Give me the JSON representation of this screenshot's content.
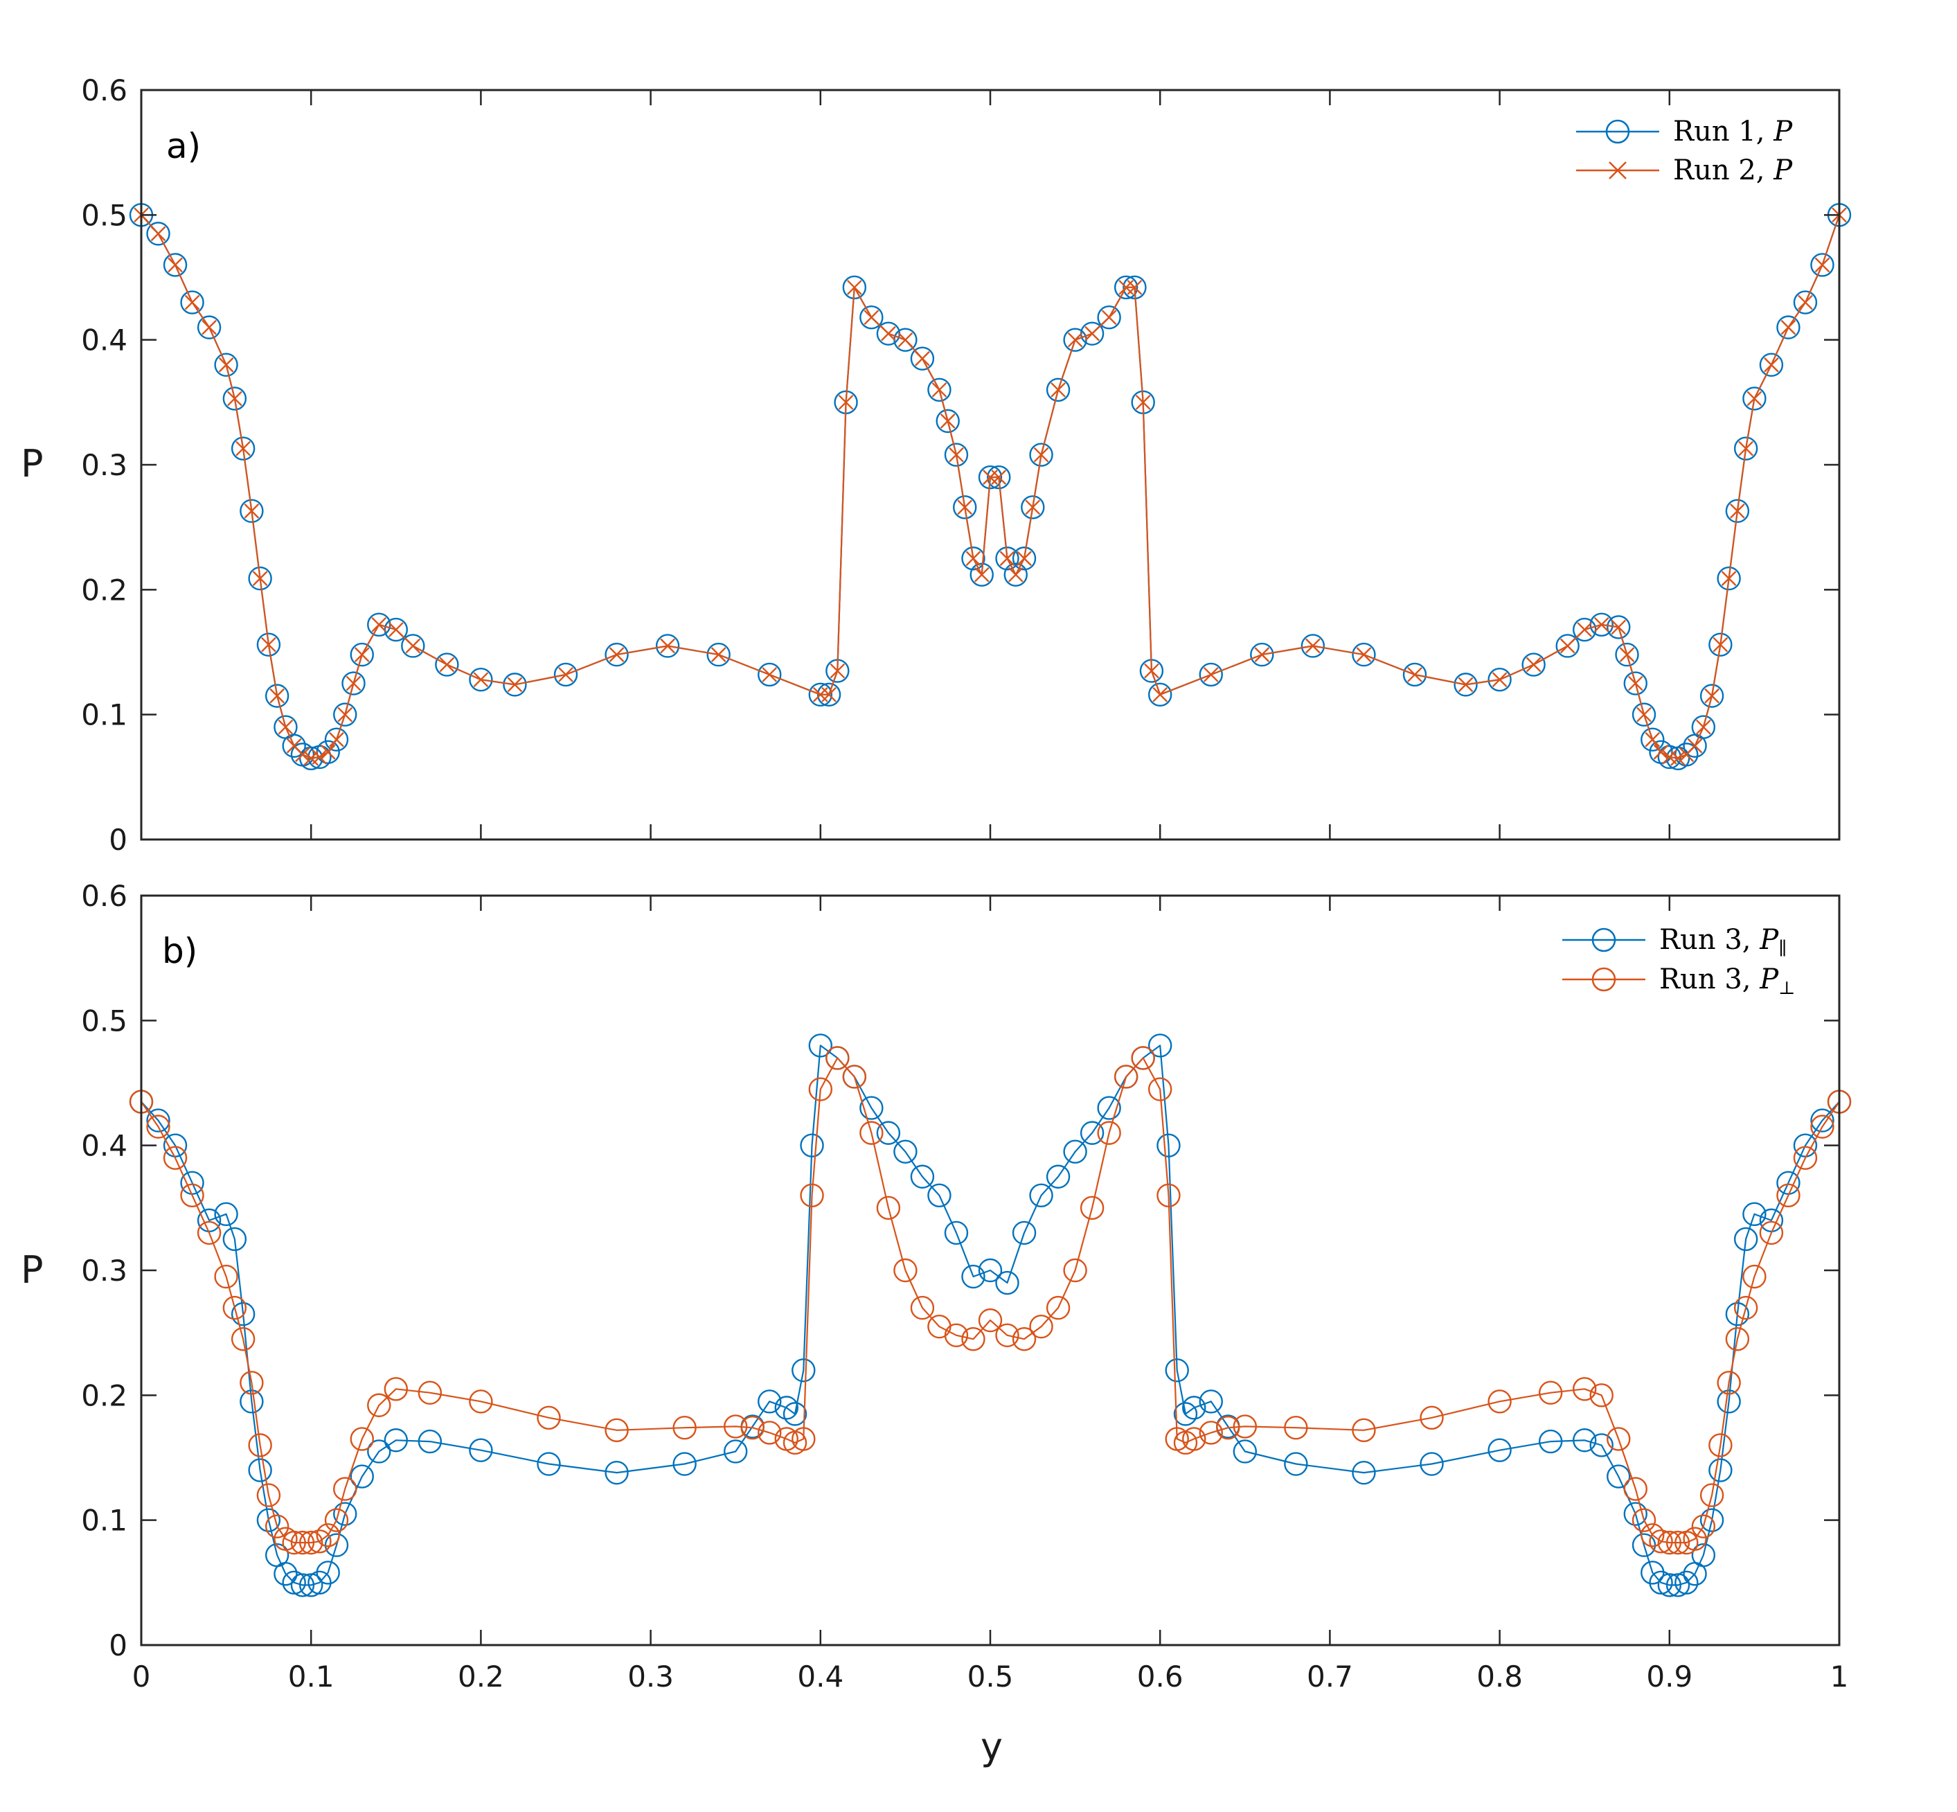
{
  "chart_data": [
    {
      "type": "line",
      "panel_label": "a)",
      "ylabel": "P",
      "xlabel": "",
      "xlim": [
        0,
        1
      ],
      "ylim": [
        0,
        0.6
      ],
      "xticks": [
        0,
        0.1,
        0.2,
        0.3,
        0.4,
        0.5,
        0.6,
        0.7,
        0.8,
        0.9,
        1
      ],
      "xtick_labels_shown": false,
      "yticks": [
        0,
        0.1,
        0.2,
        0.3,
        0.4,
        0.5,
        0.6
      ],
      "ytick_labels": [
        "0",
        "0.1",
        "0.2",
        "0.3",
        "0.4",
        "0.5",
        "0.6"
      ],
      "grid": false,
      "legend_position": "top-right",
      "x": [
        0,
        0.01,
        0.02,
        0.03,
        0.04,
        0.05,
        0.055,
        0.06,
        0.065,
        0.07,
        0.075,
        0.08,
        0.085,
        0.09,
        0.095,
        0.1,
        0.105,
        0.11,
        0.115,
        0.12,
        0.125,
        0.13,
        0.14,
        0.15,
        0.16,
        0.18,
        0.2,
        0.22,
        0.25,
        0.28,
        0.31,
        0.34,
        0.37,
        0.4,
        0.405,
        0.41,
        0.415,
        0.42,
        0.43,
        0.44,
        0.45,
        0.46,
        0.47,
        0.475,
        0.48,
        0.485,
        0.49,
        0.495,
        0.5,
        0.505,
        0.51,
        0.515,
        0.52,
        0.525,
        0.53,
        0.54,
        0.55,
        0.56,
        0.57,
        0.58,
        0.585,
        0.59,
        0.595,
        0.6,
        0.63,
        0.66,
        0.69,
        0.72,
        0.75,
        0.78,
        0.8,
        0.82,
        0.84,
        0.85,
        0.86,
        0.87,
        0.875,
        0.88,
        0.885,
        0.89,
        0.895,
        0.9,
        0.905,
        0.91,
        0.915,
        0.92,
        0.925,
        0.93,
        0.935,
        0.94,
        0.945,
        0.95,
        0.96,
        0.97,
        0.98,
        0.99,
        1
      ],
      "series": [
        {
          "name": "Run 1, P",
          "color": "#0072BD",
          "marker": "circle",
          "values": [
            0.5,
            0.485,
            0.46,
            0.43,
            0.41,
            0.38,
            0.353,
            0.313,
            0.263,
            0.209,
            0.156,
            0.115,
            0.09,
            0.075,
            0.068,
            0.065,
            0.066,
            0.07,
            0.08,
            0.1,
            0.125,
            0.148,
            0.172,
            0.168,
            0.155,
            0.14,
            0.128,
            0.124,
            0.132,
            0.148,
            0.155,
            0.148,
            0.132,
            0.116,
            0.116,
            0.135,
            0.35,
            0.442,
            0.418,
            0.405,
            0.4,
            0.385,
            0.36,
            0.335,
            0.308,
            0.266,
            0.225,
            0.212,
            0.29,
            0.29,
            0.225,
            0.212,
            0.225,
            0.266,
            0.308,
            0.36,
            0.4,
            0.405,
            0.418,
            0.442,
            0.442,
            0.35,
            0.135,
            0.116,
            0.132,
            0.148,
            0.155,
            0.148,
            0.132,
            0.124,
            0.128,
            0.14,
            0.155,
            0.168,
            0.172,
            0.17,
            0.148,
            0.125,
            0.1,
            0.08,
            0.07,
            0.066,
            0.065,
            0.068,
            0.075,
            0.09,
            0.115,
            0.156,
            0.209,
            0.263,
            0.313,
            0.353,
            0.38,
            0.41,
            0.43,
            0.46,
            0.5
          ]
        },
        {
          "name": "Run 2, P",
          "color": "#D95319",
          "marker": "x",
          "values": [
            0.5,
            0.485,
            0.46,
            0.43,
            0.41,
            0.38,
            0.353,
            0.313,
            0.263,
            0.209,
            0.156,
            0.115,
            0.09,
            0.075,
            0.068,
            0.065,
            0.066,
            0.07,
            0.08,
            0.1,
            0.125,
            0.148,
            0.172,
            0.168,
            0.155,
            0.14,
            0.128,
            0.124,
            0.132,
            0.148,
            0.155,
            0.148,
            0.132,
            0.116,
            0.116,
            0.135,
            0.35,
            0.442,
            0.418,
            0.405,
            0.4,
            0.385,
            0.36,
            0.335,
            0.308,
            0.266,
            0.225,
            0.212,
            0.29,
            0.29,
            0.225,
            0.212,
            0.225,
            0.266,
            0.308,
            0.36,
            0.4,
            0.405,
            0.418,
            0.442,
            0.442,
            0.35,
            0.135,
            0.116,
            0.132,
            0.148,
            0.155,
            0.148,
            0.132,
            0.124,
            0.128,
            0.14,
            0.155,
            0.168,
            0.172,
            0.17,
            0.148,
            0.125,
            0.1,
            0.08,
            0.07,
            0.066,
            0.065,
            0.068,
            0.075,
            0.09,
            0.115,
            0.156,
            0.209,
            0.263,
            0.313,
            0.353,
            0.38,
            0.41,
            0.43,
            0.46,
            0.5
          ]
        }
      ]
    },
    {
      "type": "line",
      "panel_label": "b)",
      "ylabel": "P",
      "xlabel": "y",
      "xlim": [
        0,
        1
      ],
      "ylim": [
        0,
        0.6
      ],
      "xticks": [
        0,
        0.1,
        0.2,
        0.3,
        0.4,
        0.5,
        0.6,
        0.7,
        0.8,
        0.9,
        1
      ],
      "xtick_labels": [
        "0",
        "0.1",
        "0.2",
        "0.3",
        "0.4",
        "0.5",
        "0.6",
        "0.7",
        "0.8",
        "0.9",
        "1"
      ],
      "yticks": [
        0,
        0.1,
        0.2,
        0.3,
        0.4,
        0.5,
        0.6
      ],
      "ytick_labels": [
        "0",
        "0.1",
        "0.2",
        "0.3",
        "0.4",
        "0.5",
        "0.6"
      ],
      "grid": false,
      "legend_position": "top-right",
      "x": [
        0,
        0.01,
        0.02,
        0.03,
        0.04,
        0.05,
        0.055,
        0.06,
        0.065,
        0.07,
        0.075,
        0.08,
        0.085,
        0.09,
        0.095,
        0.1,
        0.105,
        0.11,
        0.115,
        0.12,
        0.13,
        0.14,
        0.15,
        0.17,
        0.2,
        0.24,
        0.28,
        0.32,
        0.35,
        0.36,
        0.37,
        0.38,
        0.385,
        0.39,
        0.395,
        0.4,
        0.41,
        0.42,
        0.43,
        0.44,
        0.45,
        0.46,
        0.47,
        0.48,
        0.49,
        0.5,
        0.51,
        0.52,
        0.53,
        0.54,
        0.55,
        0.56,
        0.57,
        0.58,
        0.59,
        0.6,
        0.605,
        0.61,
        0.615,
        0.62,
        0.63,
        0.64,
        0.65,
        0.68,
        0.72,
        0.76,
        0.8,
        0.83,
        0.85,
        0.86,
        0.87,
        0.88,
        0.885,
        0.89,
        0.895,
        0.9,
        0.905,
        0.91,
        0.915,
        0.92,
        0.925,
        0.93,
        0.935,
        0.94,
        0.945,
        0.95,
        0.96,
        0.97,
        0.98,
        0.99,
        1
      ],
      "series": [
        {
          "name": "Run 3, P∥",
          "color": "#0072BD",
          "marker": "circle",
          "values": [
            0.435,
            0.42,
            0.4,
            0.37,
            0.34,
            0.345,
            0.325,
            0.265,
            0.195,
            0.14,
            0.1,
            0.072,
            0.057,
            0.05,
            0.048,
            0.048,
            0.05,
            0.058,
            0.08,
            0.105,
            0.135,
            0.155,
            0.164,
            0.163,
            0.156,
            0.145,
            0.138,
            0.145,
            0.155,
            0.175,
            0.195,
            0.19,
            0.185,
            0.22,
            0.4,
            0.48,
            0.47,
            0.455,
            0.43,
            0.41,
            0.395,
            0.375,
            0.36,
            0.33,
            0.295,
            0.3,
            0.29,
            0.33,
            0.36,
            0.375,
            0.395,
            0.41,
            0.43,
            0.455,
            0.47,
            0.48,
            0.4,
            0.22,
            0.185,
            0.19,
            0.195,
            0.175,
            0.155,
            0.145,
            0.138,
            0.145,
            0.156,
            0.163,
            0.164,
            0.16,
            0.135,
            0.105,
            0.08,
            0.058,
            0.05,
            0.048,
            0.048,
            0.05,
            0.057,
            0.072,
            0.1,
            0.14,
            0.195,
            0.265,
            0.325,
            0.345,
            0.34,
            0.37,
            0.4,
            0.42,
            0.435
          ]
        },
        {
          "name": "Run 3, P⊥",
          "color": "#D95319",
          "marker": "circle",
          "values": [
            0.435,
            0.415,
            0.39,
            0.36,
            0.33,
            0.295,
            0.27,
            0.245,
            0.21,
            0.16,
            0.12,
            0.095,
            0.085,
            0.082,
            0.082,
            0.082,
            0.083,
            0.088,
            0.1,
            0.125,
            0.165,
            0.192,
            0.205,
            0.202,
            0.195,
            0.182,
            0.172,
            0.174,
            0.175,
            0.174,
            0.17,
            0.165,
            0.162,
            0.165,
            0.36,
            0.445,
            0.47,
            0.455,
            0.41,
            0.35,
            0.3,
            0.27,
            0.255,
            0.248,
            0.245,
            0.26,
            0.248,
            0.245,
            0.255,
            0.27,
            0.3,
            0.35,
            0.41,
            0.455,
            0.47,
            0.445,
            0.36,
            0.165,
            0.162,
            0.165,
            0.17,
            0.174,
            0.175,
            0.174,
            0.172,
            0.182,
            0.195,
            0.202,
            0.205,
            0.2,
            0.165,
            0.125,
            0.1,
            0.088,
            0.083,
            0.082,
            0.082,
            0.082,
            0.085,
            0.095,
            0.12,
            0.16,
            0.21,
            0.245,
            0.27,
            0.295,
            0.33,
            0.36,
            0.39,
            0.415,
            0.435
          ]
        }
      ]
    }
  ],
  "legend_a": {
    "entry1_text": "Run 1, ",
    "entry1_sym": "P",
    "entry2_text": "Run 2, ",
    "entry2_sym": "P"
  },
  "legend_b": {
    "entry1_text": "Run 3, ",
    "entry1_sym": "P",
    "entry1_sub": "∥",
    "entry2_text": "Run 3, ",
    "entry2_sym": "P",
    "entry2_sub": "⊥"
  }
}
